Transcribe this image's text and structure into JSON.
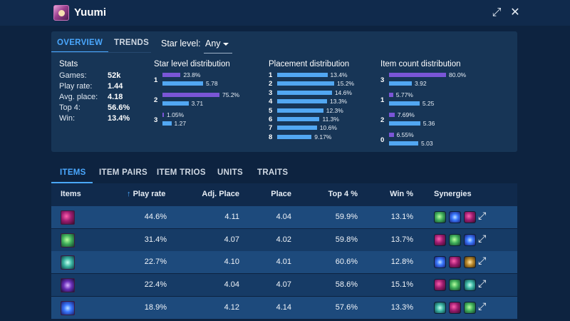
{
  "window": {
    "title": "Yuumi"
  },
  "tabs_top": [
    "OVERVIEW",
    "TRENDS"
  ],
  "star_select": {
    "label": "Star level:",
    "value": "Any"
  },
  "stats": {
    "title": "Stats",
    "rows": [
      {
        "label": "Games:",
        "value": "52k"
      },
      {
        "label": "Play rate:",
        "value": "1.44"
      },
      {
        "label": "Avg. place:",
        "value": "4.18"
      },
      {
        "label": "Top 4:",
        "value": "56.6%"
      },
      {
        "label": "Win:",
        "value": "13.4%"
      }
    ]
  },
  "star_dist": {
    "title": "Star level distribution",
    "rows": [
      {
        "key": "1",
        "pct": "23.8%",
        "pct_value": 23.8,
        "avg": "5.78",
        "avg_value": 5.78
      },
      {
        "key": "2",
        "pct": "75.2%",
        "pct_value": 75.2,
        "avg": "3.71",
        "avg_value": 3.71
      },
      {
        "key": "3",
        "pct": "1.05%",
        "pct_value": 1.05,
        "avg": "1.27",
        "avg_value": 1.27
      }
    ]
  },
  "placement_dist": {
    "title": "Placement distribution",
    "rows": [
      {
        "key": "1",
        "pct": "13.4%",
        "value": 13.4
      },
      {
        "key": "2",
        "pct": "15.2%",
        "value": 15.2
      },
      {
        "key": "3",
        "pct": "14.6%",
        "value": 14.6
      },
      {
        "key": "4",
        "pct": "13.3%",
        "value": 13.3
      },
      {
        "key": "5",
        "pct": "12.3%",
        "value": 12.3
      },
      {
        "key": "6",
        "pct": "11.3%",
        "value": 11.3
      },
      {
        "key": "7",
        "pct": "10.6%",
        "value": 10.6
      },
      {
        "key": "8",
        "pct": "9.17%",
        "value": 9.17
      }
    ]
  },
  "item_count_dist": {
    "title": "Item count distribution",
    "rows": [
      {
        "key": "3",
        "pct": "80.0%",
        "pct_value": 80.0,
        "avg": "3.92",
        "avg_value": 3.92
      },
      {
        "key": "1",
        "pct": "5.77%",
        "pct_value": 5.77,
        "avg": "5.25",
        "avg_value": 5.25
      },
      {
        "key": "2",
        "pct": "7.69%",
        "pct_value": 7.69,
        "avg": "5.36",
        "avg_value": 5.36
      },
      {
        "key": "0",
        "pct": "6.55%",
        "pct_value": 6.55,
        "avg": "5.03",
        "avg_value": 5.03
      }
    ]
  },
  "tabs_bottom": [
    "ITEMS",
    "ITEM PAIRS",
    "ITEM TRIOS",
    "UNITS",
    "TRAITS"
  ],
  "table": {
    "headers": [
      "Items",
      "Play rate",
      "Adj. Place",
      "Place",
      "Top 4 %",
      "Win %",
      "Synergies"
    ],
    "rows": [
      {
        "item_icon": "morellonomicon-icon",
        "play_rate": "44.6%",
        "adj_place": "4.11",
        "place": "4.04",
        "top4": "59.9%",
        "win": "13.1%",
        "synergies": [
          "redemption-icon",
          "blue-buff-icon",
          "morellonomicon-icon"
        ]
      },
      {
        "item_icon": "redemption-icon",
        "play_rate": "31.4%",
        "adj_place": "4.07",
        "place": "4.02",
        "top4": "59.8%",
        "win": "13.7%",
        "synergies": [
          "morellonomicon-icon",
          "redemption-icon",
          "blue-buff-icon"
        ]
      },
      {
        "item_icon": "chalice-icon",
        "play_rate": "22.7%",
        "adj_place": "4.10",
        "place": "4.01",
        "top4": "60.6%",
        "win": "12.8%",
        "synergies": [
          "blue-buff-icon",
          "morellonomicon-icon",
          "zekes-icon"
        ]
      },
      {
        "item_icon": "shroud-icon",
        "play_rate": "22.4%",
        "adj_place": "4.04",
        "place": "4.07",
        "top4": "58.6%",
        "win": "15.1%",
        "synergies": [
          "morellonomicon-icon",
          "redemption-icon",
          "chalice-icon"
        ]
      },
      {
        "item_icon": "blue-buff-icon",
        "play_rate": "18.9%",
        "adj_place": "4.12",
        "place": "4.14",
        "top4": "57.6%",
        "win": "13.3%",
        "synergies": [
          "chalice-icon",
          "morellonomicon-icon",
          "redemption-icon"
        ]
      }
    ]
  },
  "colors": {
    "accent": "#4aa8ff",
    "bar_purple": "#7a56d6",
    "bar_blue": "#52a7f2",
    "bg": "#0d2340"
  }
}
